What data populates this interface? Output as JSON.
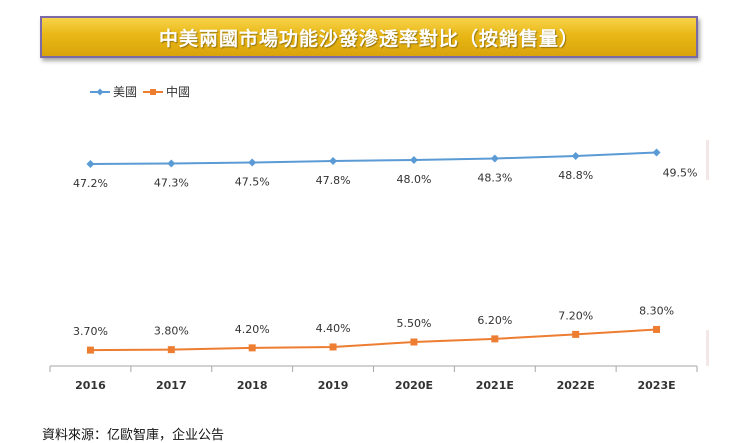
{
  "chart_data": {
    "type": "line",
    "title": "中美兩國市場功能沙發滲透率對比（按銷售量）",
    "categories": [
      "2016",
      "2017",
      "2018",
      "2019",
      "2020E",
      "2021E",
      "2022E",
      "2023E"
    ],
    "series": [
      {
        "name": "美國",
        "color": "#5b9bd5",
        "values": [
          47.2,
          47.3,
          47.5,
          47.8,
          48.0,
          48.3,
          48.8,
          49.5
        ],
        "labels": [
          "47.2%",
          "47.3%",
          "47.5%",
          "47.8%",
          "48.0%",
          "48.3%",
          "48.8%",
          "49.5%"
        ]
      },
      {
        "name": "中國",
        "color": "#ed7d31",
        "values": [
          3.7,
          3.8,
          4.2,
          4.4,
          5.5,
          6.2,
          7.2,
          8.3
        ],
        "labels": [
          "3.70%",
          "3.80%",
          "4.20%",
          "4.40%",
          "5.50%",
          "6.20%",
          "7.20%",
          "8.30%"
        ]
      }
    ],
    "xlabel": "",
    "ylabel": "",
    "legend": "top-left"
  },
  "source": "資料來源：亿歐智庫，企业公告"
}
